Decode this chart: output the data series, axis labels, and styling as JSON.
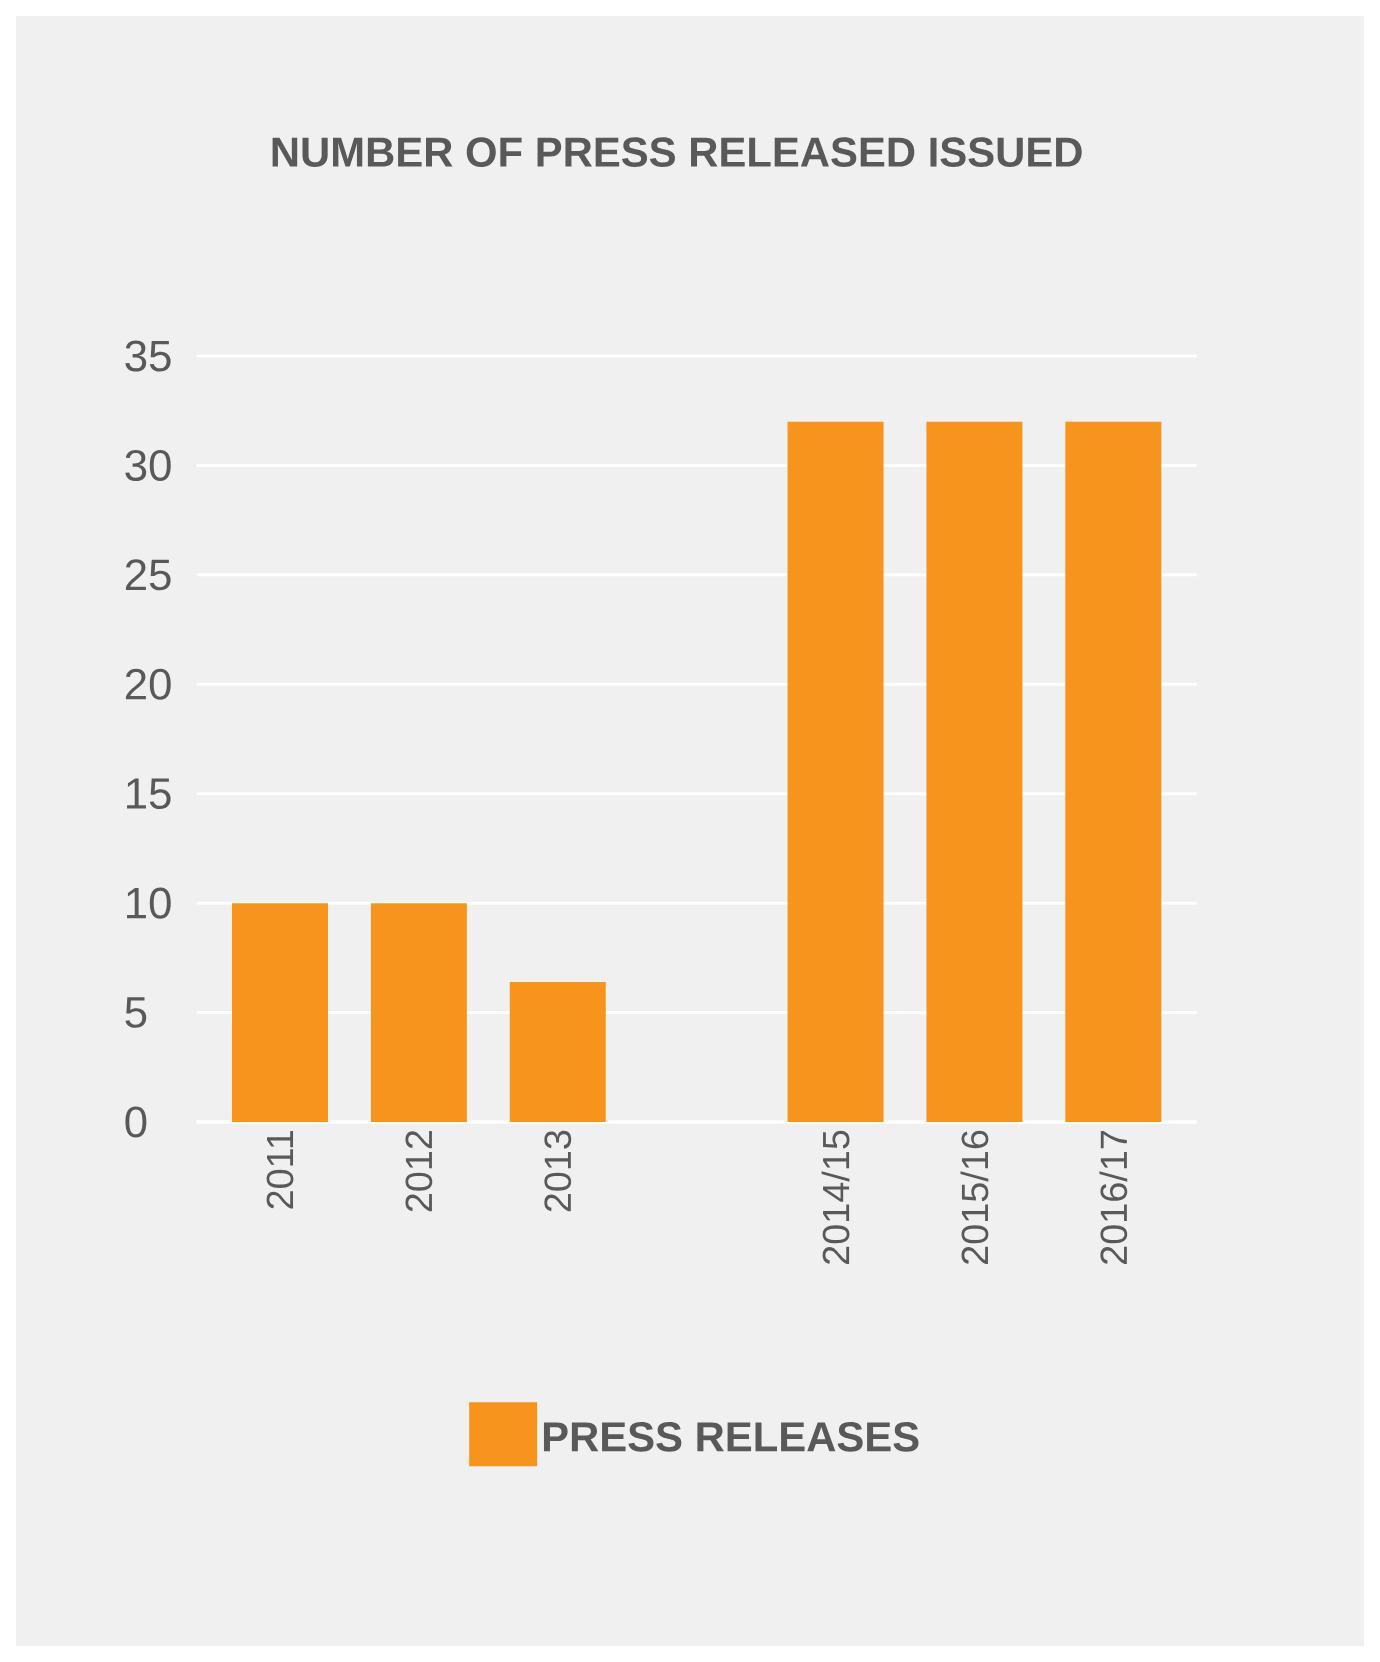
{
  "chart_data": {
    "type": "bar",
    "title": "NUMBER OF PRESS RELEASED ISSUED",
    "categories": [
      "2011",
      "2012",
      "2013",
      null,
      "2014/15",
      "2015/16",
      "2016/17"
    ],
    "series": [
      {
        "name": "PRESS RELEASES",
        "color": "#f7941d",
        "values": [
          10,
          10,
          6.4,
          null,
          32,
          32,
          32
        ]
      }
    ],
    "ylim": [
      0,
      35
    ],
    "yticks": [
      0,
      5,
      10,
      15,
      20,
      25,
      30,
      35
    ],
    "grid": "y",
    "legend": "bottom"
  }
}
